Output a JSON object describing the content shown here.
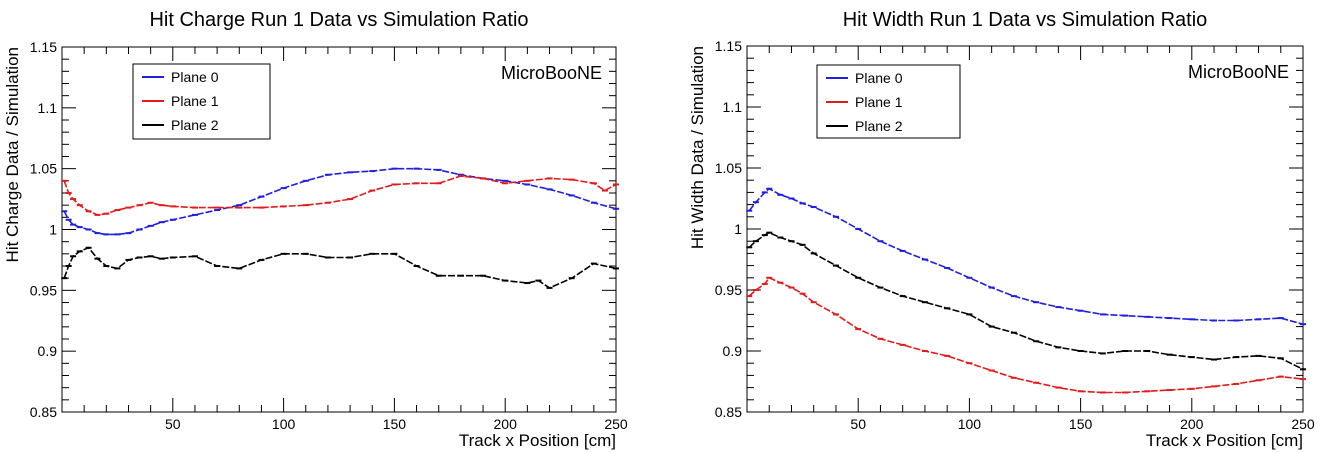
{
  "colors": {
    "plane0": "#1f1fe0",
    "plane1": "#e21b1b",
    "plane2": "#000000",
    "axis": "#000000"
  },
  "chart_data": [
    {
      "type": "line",
      "title": "Hit Charge Run 1 Data vs Simulation Ratio",
      "xlabel": "Track x Position [cm]",
      "ylabel": "Hit Charge Data / Simulation",
      "annotation": "MicroBooNE",
      "xlim": [
        0,
        250
      ],
      "ylim": [
        0.85,
        1.15
      ],
      "xticks": [
        50,
        100,
        150,
        200,
        250
      ],
      "yticks": [
        "0.85",
        "0.9",
        "0.95",
        "1",
        "1.05",
        "1.1",
        "1.15"
      ],
      "legend_position": "top-left",
      "grid": false,
      "series": [
        {
          "name": "Plane 0",
          "color": "#1f1fe0",
          "x": [
            1,
            3,
            5,
            8,
            12,
            16,
            20,
            25,
            30,
            35,
            40,
            45,
            50,
            60,
            70,
            80,
            90,
            100,
            110,
            120,
            130,
            140,
            150,
            160,
            170,
            180,
            190,
            200,
            210,
            220,
            230,
            240,
            250
          ],
          "y": [
            1.015,
            1.008,
            1.004,
            1.002,
            1.0,
            0.997,
            0.996,
            0.996,
            0.997,
            1.0,
            1.003,
            1.006,
            1.008,
            1.012,
            1.016,
            1.02,
            1.027,
            1.034,
            1.04,
            1.045,
            1.047,
            1.048,
            1.05,
            1.05,
            1.049,
            1.045,
            1.042,
            1.04,
            1.037,
            1.033,
            1.028,
            1.022,
            1.017
          ]
        },
        {
          "name": "Plane 1",
          "color": "#e21b1b",
          "x": [
            1,
            3,
            5,
            8,
            12,
            16,
            20,
            25,
            30,
            35,
            40,
            45,
            50,
            60,
            70,
            80,
            90,
            100,
            110,
            120,
            130,
            140,
            150,
            160,
            170,
            180,
            190,
            200,
            210,
            220,
            230,
            240,
            245,
            250
          ],
          "y": [
            1.04,
            1.03,
            1.025,
            1.02,
            1.015,
            1.012,
            1.013,
            1.016,
            1.018,
            1.02,
            1.022,
            1.02,
            1.019,
            1.018,
            1.018,
            1.018,
            1.018,
            1.019,
            1.02,
            1.022,
            1.025,
            1.032,
            1.037,
            1.038,
            1.038,
            1.044,
            1.042,
            1.038,
            1.04,
            1.042,
            1.041,
            1.038,
            1.032,
            1.037
          ]
        },
        {
          "name": "Plane 2",
          "color": "#000000",
          "x": [
            1,
            3,
            5,
            8,
            12,
            16,
            20,
            25,
            30,
            35,
            40,
            45,
            50,
            60,
            70,
            80,
            90,
            100,
            110,
            120,
            130,
            140,
            150,
            160,
            170,
            180,
            190,
            200,
            210,
            215,
            220,
            230,
            240,
            250
          ],
          "y": [
            0.96,
            0.97,
            0.978,
            0.982,
            0.985,
            0.976,
            0.97,
            0.968,
            0.975,
            0.977,
            0.978,
            0.976,
            0.977,
            0.978,
            0.97,
            0.968,
            0.975,
            0.98,
            0.98,
            0.977,
            0.977,
            0.98,
            0.98,
            0.97,
            0.962,
            0.962,
            0.962,
            0.958,
            0.956,
            0.958,
            0.952,
            0.96,
            0.972,
            0.968
          ]
        }
      ]
    },
    {
      "type": "line",
      "title": "Hit Width Run 1 Data vs Simulation Ratio",
      "xlabel": "Track x Position [cm]",
      "ylabel": "Hit Width Data / Simulation",
      "annotation": "MicroBooNE",
      "xlim": [
        0,
        250
      ],
      "ylim": [
        0.85,
        1.15
      ],
      "xticks": [
        50,
        100,
        150,
        200,
        250
      ],
      "yticks": [
        "0.85",
        "0.9",
        "0.95",
        "1",
        "1.05",
        "1.1",
        "1.15"
      ],
      "legend_position": "top-left",
      "grid": false,
      "series": [
        {
          "name": "Plane 0",
          "color": "#1f1fe0",
          "x": [
            1,
            4,
            8,
            10,
            15,
            20,
            25,
            30,
            40,
            50,
            60,
            70,
            80,
            90,
            100,
            110,
            120,
            130,
            140,
            150,
            160,
            170,
            180,
            190,
            200,
            210,
            220,
            230,
            240,
            250
          ],
          "y": [
            1.015,
            1.022,
            1.03,
            1.033,
            1.028,
            1.025,
            1.021,
            1.018,
            1.01,
            1.0,
            0.99,
            0.982,
            0.975,
            0.968,
            0.96,
            0.952,
            0.945,
            0.94,
            0.936,
            0.933,
            0.93,
            0.929,
            0.928,
            0.927,
            0.926,
            0.925,
            0.925,
            0.926,
            0.927,
            0.922
          ]
        },
        {
          "name": "Plane 1",
          "color": "#e21b1b",
          "x": [
            1,
            4,
            8,
            10,
            15,
            20,
            25,
            30,
            40,
            50,
            60,
            70,
            80,
            90,
            100,
            110,
            120,
            130,
            140,
            150,
            160,
            170,
            180,
            190,
            200,
            210,
            220,
            230,
            240,
            250
          ],
          "y": [
            0.945,
            0.95,
            0.955,
            0.96,
            0.956,
            0.952,
            0.947,
            0.94,
            0.93,
            0.918,
            0.91,
            0.905,
            0.9,
            0.896,
            0.89,
            0.884,
            0.878,
            0.874,
            0.87,
            0.867,
            0.866,
            0.866,
            0.867,
            0.868,
            0.869,
            0.871,
            0.873,
            0.876,
            0.879,
            0.877
          ]
        },
        {
          "name": "Plane 2",
          "color": "#000000",
          "x": [
            1,
            4,
            8,
            10,
            15,
            20,
            25,
            30,
            40,
            50,
            60,
            70,
            80,
            90,
            100,
            110,
            120,
            130,
            140,
            150,
            160,
            170,
            180,
            190,
            200,
            210,
            220,
            230,
            240,
            250
          ],
          "y": [
            0.985,
            0.99,
            0.995,
            0.997,
            0.993,
            0.99,
            0.987,
            0.98,
            0.97,
            0.96,
            0.952,
            0.945,
            0.94,
            0.935,
            0.93,
            0.92,
            0.915,
            0.908,
            0.903,
            0.9,
            0.898,
            0.9,
            0.9,
            0.897,
            0.895,
            0.893,
            0.895,
            0.896,
            0.894,
            0.885
          ]
        }
      ]
    }
  ]
}
